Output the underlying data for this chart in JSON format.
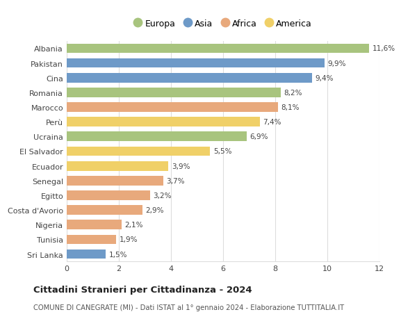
{
  "countries": [
    "Albania",
    "Pakistan",
    "Cina",
    "Romania",
    "Marocco",
    "Perù",
    "Ucraina",
    "El Salvador",
    "Ecuador",
    "Senegal",
    "Egitto",
    "Costa d'Avorio",
    "Nigeria",
    "Tunisia",
    "Sri Lanka"
  ],
  "values": [
    11.6,
    9.9,
    9.4,
    8.2,
    8.1,
    7.4,
    6.9,
    5.5,
    3.9,
    3.7,
    3.2,
    2.9,
    2.1,
    1.9,
    1.5
  ],
  "continents": [
    "Europa",
    "Asia",
    "Asia",
    "Europa",
    "Africa",
    "America",
    "Europa",
    "America",
    "America",
    "Africa",
    "Africa",
    "Africa",
    "Africa",
    "Africa",
    "Asia"
  ],
  "colors": {
    "Europa": "#a8c47e",
    "Asia": "#6e9ac8",
    "Africa": "#e8a97c",
    "America": "#f0d068"
  },
  "legend_order": [
    "Europa",
    "Asia",
    "Africa",
    "America"
  ],
  "title": "Cittadini Stranieri per Cittadinanza - 2024",
  "subtitle": "COMUNE DI CANEGRATE (MI) - Dati ISTAT al 1° gennaio 2024 - Elaborazione TUTTITALIA.IT",
  "xlim": [
    0,
    12
  ],
  "xticks": [
    0,
    2,
    4,
    6,
    8,
    10,
    12
  ],
  "bar_height": 0.65,
  "background_color": "#ffffff",
  "grid_color": "#dddddd"
}
